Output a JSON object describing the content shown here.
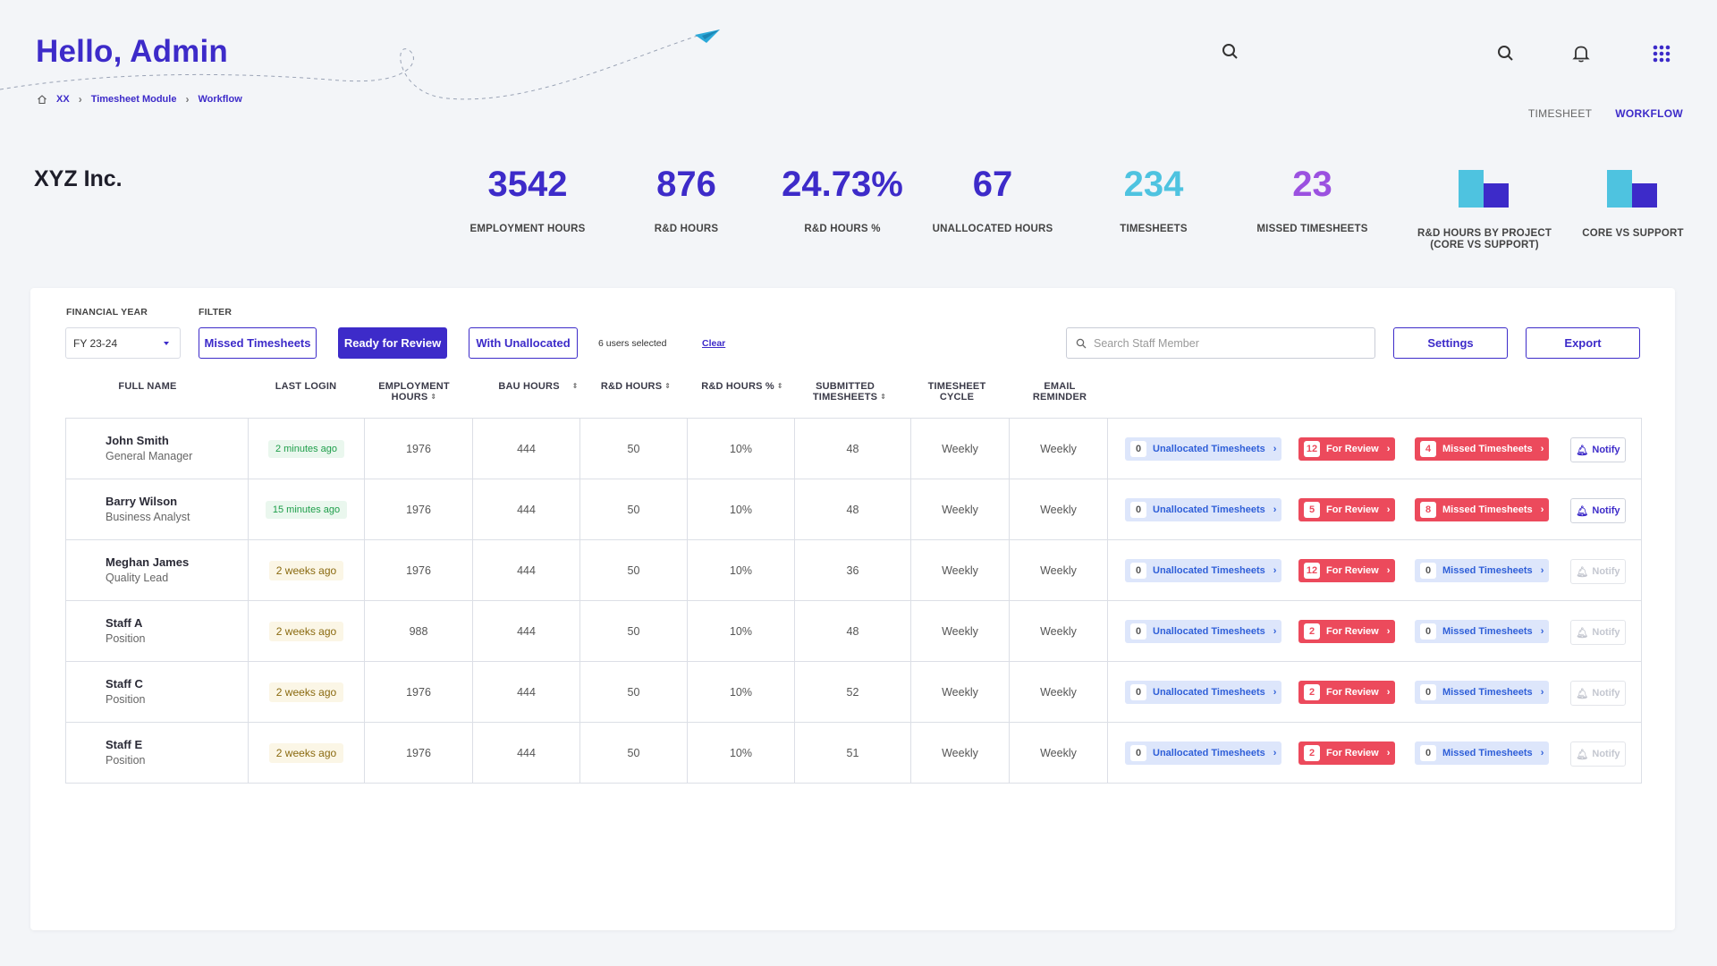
{
  "header": {
    "greeting": "Hello, Admin",
    "breadcrumb": [
      "XX",
      "Timesheet Module",
      "Workflow"
    ],
    "view_tabs": [
      "TIMESHEET",
      "WORKFLOW"
    ],
    "active_tab": "WORKFLOW"
  },
  "company": "XYZ Inc.",
  "kpis": [
    {
      "value": "3542",
      "label": "EMPLOYMENT HOURS",
      "color": "#3d2bc9"
    },
    {
      "value": "876",
      "label": "R&D HOURS",
      "color": "#3d2bc9"
    },
    {
      "value": "24.73%",
      "label": "R&D HOURS %",
      "color": "#3d2bc9"
    },
    {
      "value": "67",
      "label": "UNALLOCATED HOURS",
      "color": "#3d2bc9"
    },
    {
      "value": "234",
      "label": "TIMESHEETS",
      "color": "#4ec3e0"
    },
    {
      "value": "23",
      "label": "MISSED TIMESHEETS",
      "color": "#9b51e0"
    }
  ],
  "mini_charts": [
    {
      "label_line1": "R&D HOURS  BY PROJECT",
      "label_line2": "(CORE VS SUPPORT)",
      "colors": [
        "#4ec3e0",
        "#3d2bc9"
      ]
    },
    {
      "label_line1": "CORE VS SUPPORT",
      "label_line2": "",
      "colors": [
        "#4ec3e0",
        "#3d2bc9"
      ]
    }
  ],
  "filters": {
    "financial_year_label": "FINANCIAL YEAR",
    "financial_year_value": "FY 23-24",
    "filter_label": "FILTER",
    "missed": "Missed Timesheets",
    "ready": "Ready for Review",
    "unallocated": "With Unallocated",
    "selected_count": "6 users selected",
    "clear": "Clear",
    "search_placeholder": "Search Staff Member",
    "settings": "Settings",
    "export": "Export"
  },
  "columns": {
    "full_name": "FULL NAME",
    "last_login": "LAST LOGIN",
    "employment_1": "EMPLOYMENT",
    "employment_2": "HOURS",
    "bau": "BAU HOURS",
    "rd": "R&D HOURS",
    "rd_pct": "R&D HOURS %",
    "submitted_1": "SUBMITTED",
    "submitted_2": "TIMESHEETS",
    "cycle_1": "TIMESHEET",
    "cycle_2": "CYCLE",
    "email_1": "EMAIL",
    "email_2": "REMINDER"
  },
  "actions": {
    "unallocated": "Unallocated Timesheets",
    "review": "For Review",
    "missed": "Missed Timesheets",
    "notify": "Notify"
  },
  "rows": [
    {
      "name": "John Smith",
      "position": "General Manager",
      "last_login": "2 minutes ago",
      "login_status": "green",
      "employment": "1976",
      "bau": "444",
      "rd": "50",
      "rd_pct": "10%",
      "submitted": "48",
      "cycle": "Weekly",
      "reminder": "Weekly",
      "unallocated": "0",
      "review": "12",
      "missed": "4",
      "notify_enabled": true
    },
    {
      "name": "Barry Wilson",
      "position": "Business Analyst",
      "last_login": "15 minutes ago",
      "login_status": "green",
      "employment": "1976",
      "bau": "444",
      "rd": "50",
      "rd_pct": "10%",
      "submitted": "48",
      "cycle": "Weekly",
      "reminder": "Weekly",
      "unallocated": "0",
      "review": "5",
      "missed": "8",
      "notify_enabled": true
    },
    {
      "name": "Meghan James",
      "position": "Quality Lead",
      "last_login": "2 weeks ago",
      "login_status": "amber",
      "employment": "1976",
      "bau": "444",
      "rd": "50",
      "rd_pct": "10%",
      "submitted": "36",
      "cycle": "Weekly",
      "reminder": "Weekly",
      "unallocated": "0",
      "review": "12",
      "missed": "0",
      "notify_enabled": false
    },
    {
      "name": "Staff A",
      "position": "Position",
      "last_login": "2 weeks ago",
      "login_status": "amber",
      "employment": "988",
      "bau": "444",
      "rd": "50",
      "rd_pct": "10%",
      "submitted": "48",
      "cycle": "Weekly",
      "reminder": "Weekly",
      "unallocated": "0",
      "review": "2",
      "missed": "0",
      "notify_enabled": false
    },
    {
      "name": "Staff C",
      "position": "Position",
      "last_login": "2 weeks ago",
      "login_status": "amber",
      "employment": "1976",
      "bau": "444",
      "rd": "50",
      "rd_pct": "10%",
      "submitted": "52",
      "cycle": "Weekly",
      "reminder": "Weekly",
      "unallocated": "0",
      "review": "2",
      "missed": "0",
      "notify_enabled": false
    },
    {
      "name": "Staff E",
      "position": "Position",
      "last_login": "2 weeks ago",
      "login_status": "amber",
      "employment": "1976",
      "bau": "444",
      "rd": "50",
      "rd_pct": "10%",
      "submitted": "51",
      "cycle": "Weekly",
      "reminder": "Weekly",
      "unallocated": "0",
      "review": "2",
      "missed": "0",
      "notify_enabled": false
    }
  ]
}
